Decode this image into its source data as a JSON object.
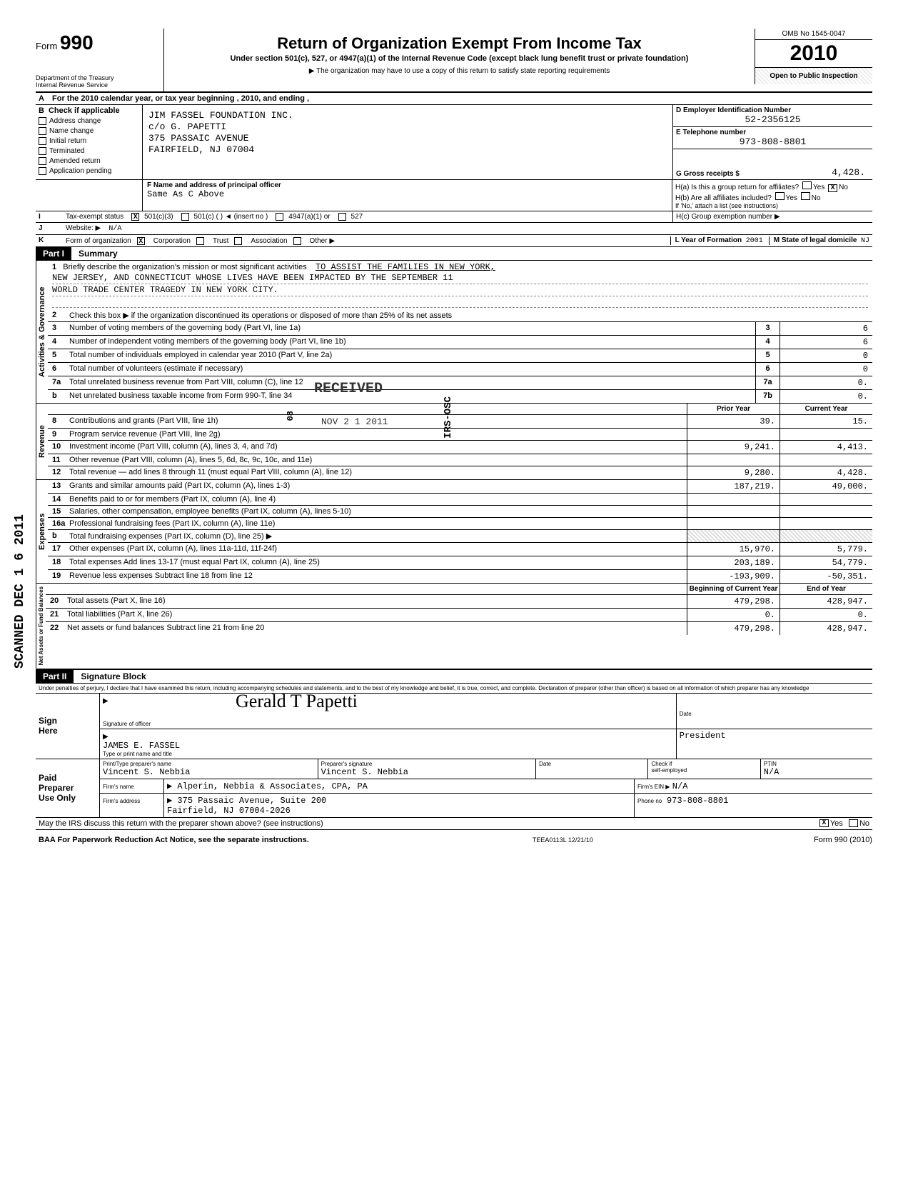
{
  "header": {
    "form_label": "Form",
    "form_number": "990",
    "dept1": "Department of the Treasury",
    "dept2": "Internal Revenue Service",
    "title": "Return of Organization Exempt From Income Tax",
    "subtitle": "Under section 501(c), 527, or 4947(a)(1) of the Internal Revenue Code (except black lung benefit trust or private foundation)",
    "note": "▶ The organization may have to use a copy of this return to satisfy state reporting requirements",
    "omb": "OMB No 1545-0047",
    "year": "2010",
    "open": "Open to Public Inspection"
  },
  "line_a": "For the 2010 calendar year, or tax year beginning                              , 2010, and ending                              ,",
  "box_b": {
    "header": "Check if applicable",
    "items": [
      "Address change",
      "Name change",
      "Initial return",
      "Terminated",
      "Amended return",
      "Application pending"
    ]
  },
  "box_c": {
    "line1": "JIM FASSEL FOUNDATION INC.",
    "line2": "c/o G. PAPETTI",
    "line3": "375 PASSAIC AVENUE",
    "line4": "FAIRFIELD, NJ 07004"
  },
  "box_d": {
    "label": "D  Employer Identification Number",
    "value": "52-2356125"
  },
  "box_e": {
    "label": "E  Telephone number",
    "value": "973-808-8801"
  },
  "box_g": {
    "label": "G  Gross receipts $",
    "value": "4,428."
  },
  "box_f": {
    "label": "F  Name and address of principal officer",
    "value": "Same As C Above"
  },
  "box_h": {
    "a_label": "H(a) Is this a group return for affiliates?",
    "a_yes": "Yes",
    "a_no": "No",
    "a_checked": "X",
    "b_label": "H(b) Are all affiliates included?",
    "b_yes": "Yes",
    "b_no": "No",
    "note": "If 'No,' attach a list (see instructions)",
    "c_label": "H(c) Group exemption number ▶"
  },
  "row_i": {
    "label": "I",
    "text": "Tax-exempt status",
    "opt1": "501(c)(3)",
    "opt2": "501(c) (        ) ◄ (insert no )",
    "opt3": "4947(a)(1) or",
    "opt4": "527",
    "checked": "X"
  },
  "row_j": {
    "label": "J",
    "text": "Website: ▶",
    "value": "N/A"
  },
  "row_k": {
    "label": "K",
    "text": "Form of organization",
    "opts": [
      "Corporation",
      "Trust",
      "Association",
      "Other ▶"
    ],
    "checked": "X",
    "year_label": "L Year of Formation",
    "year_val": "2001",
    "state_label": "M State of legal domicile",
    "state_val": "NJ"
  },
  "part1": {
    "num": "Part I",
    "title": "Summary",
    "side_gov": "Activities & Governance",
    "side_rev": "Revenue",
    "side_exp": "Expenses",
    "side_net": "Net Assets or Fund Balances",
    "line1_label": "Briefly describe the organization's mission or most significant activities",
    "line1_text_a": "TO ASSIST THE FAMILIES IN NEW YORK,",
    "line1_text_b": "NEW JERSEY, AND CONNECTICUT WHOSE LIVES HAVE BEEN IMPACTED BY THE SEPTEMBER 11",
    "line1_text_c": "WORLD TRADE CENTER TRAGEDY IN NEW YORK CITY.",
    "line2": "Check this box ▶       if the organization discontinued its operations or disposed of more than 25% of its net assets",
    "rows_gov": [
      {
        "n": "3",
        "t": "Number of voting members of the governing body (Part VI, line 1a)",
        "b": "3",
        "v": "6"
      },
      {
        "n": "4",
        "t": "Number of independent voting members of the governing body (Part VI, line 1b)",
        "b": "4",
        "v": "6"
      },
      {
        "n": "5",
        "t": "Total number of individuals employed in calendar year 2010 (Part V, line 2a)",
        "b": "5",
        "v": "0"
      },
      {
        "n": "6",
        "t": "Total number of volunteers (estimate if necessary)",
        "b": "6",
        "v": "0"
      },
      {
        "n": "7a",
        "t": "Total unrelated business revenue from Part VIII, column (C), line 12",
        "b": "7a",
        "v": "0."
      },
      {
        "n": "b",
        "t": "Net unrelated business taxable income from Form 990-T, line 34",
        "b": "7b",
        "v": "0."
      }
    ],
    "hdr_prior": "Prior Year",
    "hdr_curr": "Current Year",
    "rows_rev": [
      {
        "n": "8",
        "t": "Contributions and grants (Part VIII, line 1h)",
        "p": "39.",
        "c": "15."
      },
      {
        "n": "9",
        "t": "Program service revenue (Part VIII, line 2g)",
        "p": "",
        "c": ""
      },
      {
        "n": "10",
        "t": "Investment income (Part VIII, column (A), lines 3, 4, and 7d)",
        "p": "9,241.",
        "c": "4,413."
      },
      {
        "n": "11",
        "t": "Other revenue (Part VIII, column (A), lines 5, 6d, 8c, 9c, 10c, and 11e)",
        "p": "",
        "c": ""
      },
      {
        "n": "12",
        "t": "Total revenue — add lines 8 through 11 (must equal Part VIII, column (A), line 12)",
        "p": "9,280.",
        "c": "4,428."
      }
    ],
    "rows_exp": [
      {
        "n": "13",
        "t": "Grants and similar amounts paid (Part IX, column (A), lines 1-3)",
        "p": "187,219.",
        "c": "49,000."
      },
      {
        "n": "14",
        "t": "Benefits paid to or for members (Part IX, column (A), line 4)",
        "p": "",
        "c": ""
      },
      {
        "n": "15",
        "t": "Salaries, other compensation, employee benefits (Part IX, column (A), lines 5-10)",
        "p": "",
        "c": ""
      },
      {
        "n": "16a",
        "t": "Professional fundraising fees (Part IX, column (A), line 11e)",
        "p": "",
        "c": ""
      },
      {
        "n": "b",
        "t": "Total fundraising expenses (Part IX, column (D), line 25) ▶",
        "p": "hatch",
        "c": "hatch"
      },
      {
        "n": "17",
        "t": "Other expenses (Part IX, column (A), lines 11a-11d, 11f-24f)",
        "p": "15,970.",
        "c": "5,779."
      },
      {
        "n": "18",
        "t": "Total expenses Add lines 13-17 (must equal Part IX, column (A), line 25)",
        "p": "203,189.",
        "c": "54,779."
      },
      {
        "n": "19",
        "t": "Revenue less expenses Subtract line 18 from line 12",
        "p": "-193,909.",
        "c": "-50,351."
      }
    ],
    "hdr_beg": "Beginning of Current Year",
    "hdr_end": "End of Year",
    "rows_net": [
      {
        "n": "20",
        "t": "Total assets (Part X, line 16)",
        "p": "479,298.",
        "c": "428,947."
      },
      {
        "n": "21",
        "t": "Total liabilities (Part X, line 26)",
        "p": "0.",
        "c": "0."
      },
      {
        "n": "22",
        "t": "Net assets or fund balances Subtract line 21 from line 20",
        "p": "479,298.",
        "c": "428,947."
      }
    ]
  },
  "stamps": {
    "received": "RECEIVED",
    "date": "NOV 2 1 2011",
    "side_scanned": "SCANNED  DEC 1 6 2011",
    "side_irs": "IRS-OSC",
    "side_08": "08"
  },
  "part2": {
    "num": "Part II",
    "title": "Signature Block",
    "penalty": "Under penalties of perjury, I declare that I have examined this return, including accompanying schedules and statements, and to the best of my knowledge and belief, it is true, correct, and complete. Declaration of preparer (other than officer) is based on all information of which preparer has any knowledge"
  },
  "sign": {
    "label1": "Sign",
    "label2": "Here",
    "sig_of_officer": "Signature of officer",
    "date_lbl": "Date",
    "officer_name": "JAMES E. FASSEL",
    "officer_title_lbl": "Type or print name and title",
    "officer_title": "President",
    "cursive": "Gerald T Papetti"
  },
  "preparer": {
    "label1": "Paid",
    "label2": "Preparer",
    "label3": "Use Only",
    "col1": "Print/Type preparer's name",
    "col1v": "Vincent S. Nebbia",
    "col2": "Preparer's signature",
    "col2v": "Vincent S. Nebbia",
    "col3": "Date",
    "chk_lbl": "Check         if",
    "chk2": "self-employed",
    "ptin_lbl": "PTIN",
    "ptin_v": "N/A",
    "firm_name_lbl": "Firm's name",
    "firm_name": "▶ Alperin, Nebbia & Associates, CPA, PA",
    "firm_addr_lbl": "Firm's address",
    "firm_addr1": "▶ 375 Passaic Avenue, Suite 200",
    "firm_addr2": "Fairfield, NJ 07004-2026",
    "ein_lbl": "Firm's EIN ▶",
    "ein_v": "N/A",
    "phone_lbl": "Phone no",
    "phone_v": "973-808-8801"
  },
  "discuss": {
    "text": "May the IRS discuss this return with the preparer shown above? (see instructions)",
    "yes": "Yes",
    "no": "No",
    "checked": "X"
  },
  "footer": {
    "baa": "BAA For Paperwork Reduction Act Notice, see the separate instructions.",
    "code": "TEEA0113L  12/21/10",
    "form": "Form 990 (2010)"
  }
}
